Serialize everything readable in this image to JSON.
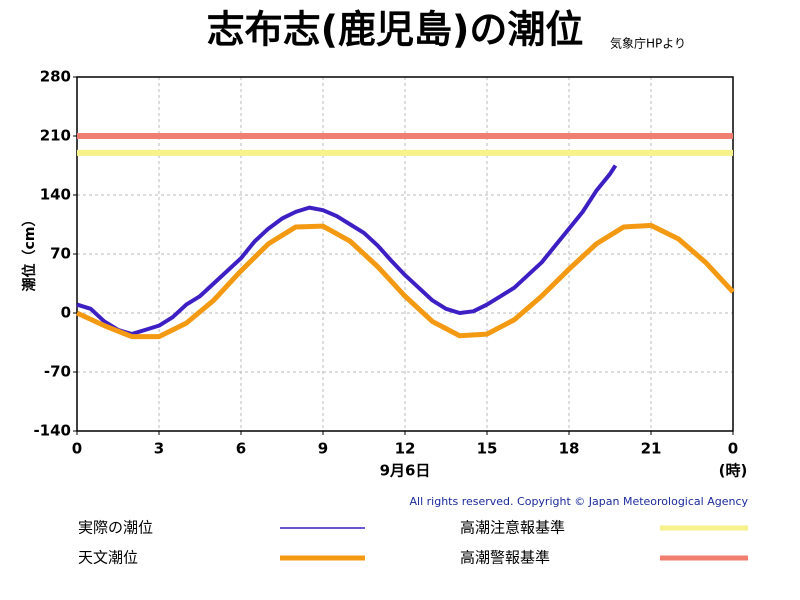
{
  "chart_data": {
    "type": "line",
    "title": "志布志(鹿児島)の潮位",
    "source": "気象庁HPより",
    "y_label": "潮位（cm）",
    "x_label": "9月6日",
    "x_unit": "(時)",
    "copyright": "All rights reserved. Copyright © Japan Meteorological Agency",
    "xlim": [
      0,
      24
    ],
    "xticks": [
      0,
      3,
      6,
      9,
      12,
      15,
      18,
      21,
      {
        "value": 24,
        "label": "0"
      }
    ],
    "ylim": [
      -140,
      280
    ],
    "yticks": [
      -140,
      -70,
      0,
      70,
      140,
      210,
      280
    ],
    "grid": true,
    "series": [
      {
        "name": "実際の潮位",
        "color": "#3d1fc4",
        "x": [
          0,
          0.5,
          1,
          1.5,
          2,
          2.5,
          3,
          3.5,
          4,
          4.5,
          5,
          5.5,
          6,
          6.5,
          7,
          7.5,
          8,
          8.5,
          9,
          9.5,
          10,
          10.5,
          11,
          11.5,
          12,
          12.5,
          13,
          13.5,
          14,
          14.5,
          15,
          15.5,
          16,
          16.5,
          17,
          17.5,
          18,
          18.5,
          19,
          19.5,
          19.7
        ],
        "values": [
          10,
          5,
          -10,
          -20,
          -25,
          -20,
          -15,
          -5,
          10,
          20,
          35,
          50,
          65,
          85,
          100,
          112,
          120,
          125,
          122,
          115,
          105,
          95,
          80,
          62,
          45,
          30,
          15,
          5,
          0,
          2,
          10,
          20,
          30,
          45,
          60,
          80,
          100,
          120,
          145,
          165,
          175
        ]
      },
      {
        "name": "天文潮位",
        "color": "#f39a12",
        "x": [
          0,
          1,
          2,
          3,
          4,
          5,
          6,
          7,
          8,
          9,
          10,
          11,
          12,
          13,
          14,
          15,
          16,
          17,
          18,
          19,
          20,
          21,
          22,
          23,
          24
        ],
        "values": [
          0,
          -15,
          -28,
          -28,
          -12,
          15,
          50,
          82,
          102,
          103,
          85,
          55,
          20,
          -10,
          -27,
          -25,
          -8,
          20,
          52,
          82,
          102,
          104,
          88,
          60,
          25
        ]
      }
    ],
    "reference_lines": [
      {
        "name": "高潮注意報基準",
        "color": "#f7f28a",
        "value": 190
      },
      {
        "name": "高潮警報基準",
        "color": "#f07f72",
        "value": 210
      }
    ]
  }
}
